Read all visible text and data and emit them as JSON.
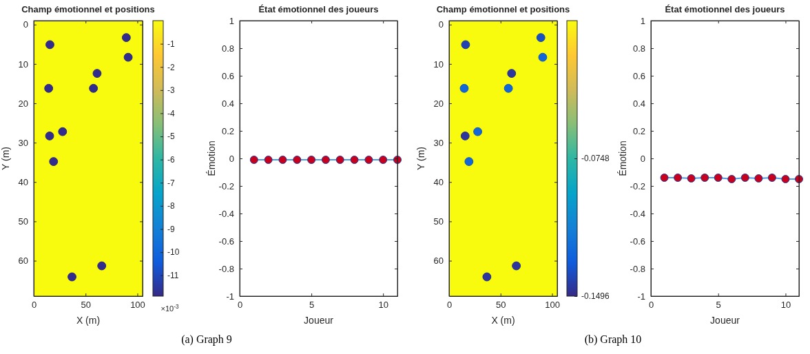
{
  "chart_data": [
    {
      "type": "scatter",
      "title": "Champ émotionnel et positions",
      "xlabel": "X (m)",
      "ylabel": "Y (m)",
      "x": [
        15.6,
        89.3,
        91.1,
        61.1,
        14.4,
        57.6,
        27.8,
        15.3,
        19.1,
        65.6,
        36.9
      ],
      "values": [
        5.1,
        3.3,
        8.3,
        12.4,
        16.2,
        16.2,
        27.2,
        28.3,
        34.8,
        61.3,
        64.1
      ],
      "cvalues": [
        -11.8,
        -11.8,
        -11.8,
        -11.8,
        -11.8,
        -11.8,
        -11.8,
        -11.8,
        -11.8,
        -11.8,
        -11.8
      ],
      "marker": "circle",
      "xlim": [
        0,
        105
      ],
      "ylim": [
        69,
        -1
      ],
      "xticks": [
        0,
        50,
        100
      ],
      "yticks": [
        0,
        10,
        20,
        30,
        40,
        50,
        60
      ],
      "clim": [
        -11.9,
        0
      ],
      "cticks": [
        -1,
        -2,
        -3,
        -4,
        -5,
        -6,
        -7,
        -8,
        -9,
        -10,
        -11
      ],
      "clabel": "×10$^{-3}$",
      "bands": [
        {
          "axis": "x",
          "from": 0,
          "to": 105,
          "color": "#f9fb0e"
        }
      ],
      "annotations": [
        "(a) Graph 9"
      ]
    },
    {
      "type": "line",
      "title": "État émotionnel des joueurs",
      "xlabel": "Joueur",
      "ylabel": "Émotion",
      "x": [
        1,
        2,
        3,
        4,
        5,
        6,
        7,
        8,
        9,
        10,
        11
      ],
      "series": [
        {
          "color": "#4d9be6",
          "values": [
            -0.01,
            -0.01,
            -0.01,
            -0.01,
            -0.01,
            -0.01,
            -0.01,
            -0.01,
            -0.01,
            -0.01,
            -0.01
          ]
        }
      ],
      "marker": "circle",
      "xlim": [
        0,
        11
      ],
      "ylim": [
        -1,
        1
      ],
      "xticks": [
        0,
        5,
        10
      ],
      "yticks": [
        -1,
        -0.8,
        -0.6,
        -0.4,
        -0.2,
        0,
        0.2,
        0.4,
        0.6,
        0.8,
        1
      ]
    },
    {
      "type": "scatter",
      "title": "Champ émotionnel et positions",
      "xlabel": "X (m)",
      "ylabel": "Y (m)",
      "x": [
        16,
        89.1,
        90.9,
        60.7,
        14.7,
        57.6,
        27.8,
        15.6,
        19.3,
        65.3,
        36.7
      ],
      "values": [
        5.1,
        3.3,
        8.3,
        12.4,
        16.2,
        16.2,
        27.2,
        28.3,
        34.8,
        61.3,
        64.1
      ],
      "cvalues": [
        -0.14,
        -0.135,
        -0.125,
        -0.145,
        -0.125,
        -0.125,
        -0.125,
        -0.145,
        -0.125,
        -0.145,
        -0.145
      ],
      "marker": "circle",
      "xlim": [
        0,
        105
      ],
      "ylim": [
        69,
        -1
      ],
      "xticks": [
        0,
        50,
        100
      ],
      "yticks": [
        0,
        10,
        20,
        30,
        40,
        50,
        60
      ],
      "clim": [
        -0.1496,
        0
      ],
      "cticks": [
        -0.0748,
        -0.1496
      ],
      "bands": [
        {
          "axis": "x",
          "from": 0,
          "to": 105,
          "color": "#f9fb0e"
        }
      ],
      "annotations": [
        "(b) Graph 10"
      ]
    },
    {
      "type": "line",
      "title": "État émotionnel des joueurs",
      "xlabel": "Joueur",
      "ylabel": "Émotion",
      "x": [
        1,
        2,
        3,
        4,
        5,
        6,
        7,
        8,
        9,
        10,
        11
      ],
      "series": [
        {
          "color": "#4d9be6",
          "values": [
            -0.14,
            -0.14,
            -0.145,
            -0.14,
            -0.14,
            -0.15,
            -0.14,
            -0.145,
            -0.14,
            -0.15,
            -0.15
          ]
        }
      ],
      "marker": "circle",
      "xlim": [
        0,
        11
      ],
      "ylim": [
        -1,
        1
      ],
      "xticks": [
        0,
        5,
        10
      ],
      "yticks": [
        -1,
        -0.8,
        -0.6,
        -0.4,
        -0.2,
        0,
        0.2,
        0.4,
        0.6,
        0.8,
        1
      ]
    }
  ]
}
